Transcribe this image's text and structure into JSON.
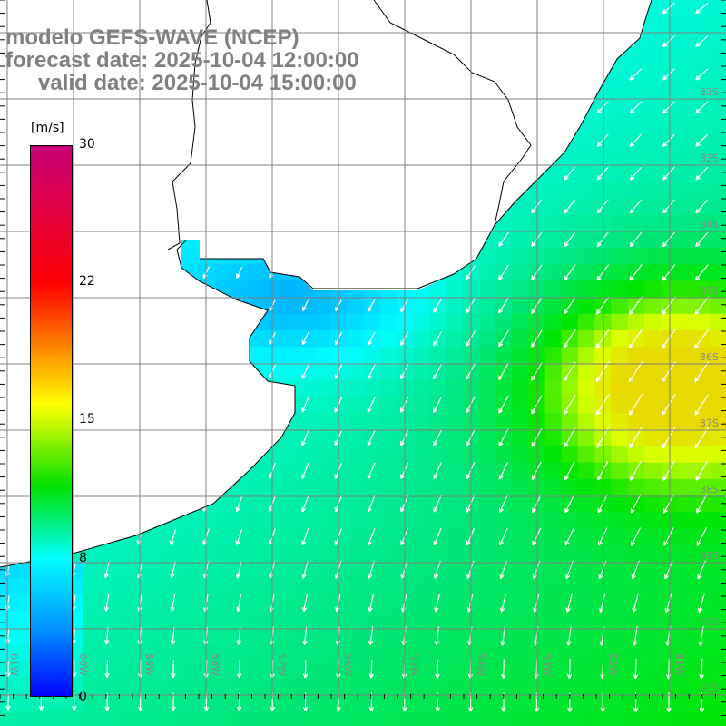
{
  "title": {
    "model": "modelo GEFS-WAVE (NCEP)",
    "forecast": "forecast date: 2025-10-04 12:00:00",
    "valid": "valid date: 2025-10-04 15:00:00"
  },
  "colorbar": {
    "unit": "[m/s]",
    "labels": [
      "30",
      "22",
      "15",
      "8",
      "0"
    ],
    "colors": [
      "#c8007a",
      "#ff0000",
      "#ff8c00",
      "#ffff00",
      "#00e000",
      "#00ffff",
      "#0090ff",
      "#0000ff"
    ]
  },
  "axes": {
    "lat_labels": [
      "32S",
      "33S",
      "34S",
      "35S",
      "36S",
      "37S",
      "38S",
      "39S",
      "40S",
      "41S"
    ],
    "lon_labels": [
      "61W",
      "60W",
      "59W",
      "58W",
      "57W",
      "56W",
      "55W",
      "54W",
      "53W",
      "52W",
      "51W"
    ]
  },
  "colors": {
    "land": "#ffffff",
    "grid": "#808080",
    "coast": "#000000",
    "arrow": "#ffffff"
  }
}
